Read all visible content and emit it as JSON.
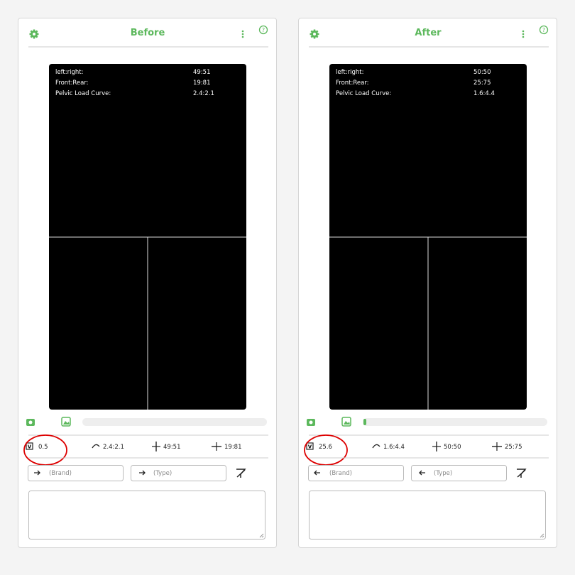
{
  "panels": [
    {
      "title": "Before",
      "overlay": [
        {
          "label": "left:right:",
          "value": "49:51"
        },
        {
          "label": "Front:Rear:",
          "value": "19:81"
        },
        {
          "label": "Pelvic Load Curve:",
          "value": "2.4:2.1"
        }
      ],
      "stats": {
        "tilt": "0.5",
        "curve": "2.4:2.1",
        "left_right": "49:51",
        "front_rear": "19:81"
      },
      "inputs": {
        "brand": "(Brand)",
        "type": "(Type)"
      }
    },
    {
      "title": "After",
      "overlay": [
        {
          "label": "left:right:",
          "value": "50:50"
        },
        {
          "label": "Front:Rear:",
          "value": "25:75"
        },
        {
          "label": "Pelvic Load Curve:",
          "value": "1.6:4.4"
        }
      ],
      "stats": {
        "tilt": "25.6",
        "curve": "1.6:4.4",
        "left_right": "50:50",
        "front_rear": "25:75"
      },
      "inputs": {
        "brand": "(Brand)",
        "type": "(Type)"
      }
    }
  ]
}
